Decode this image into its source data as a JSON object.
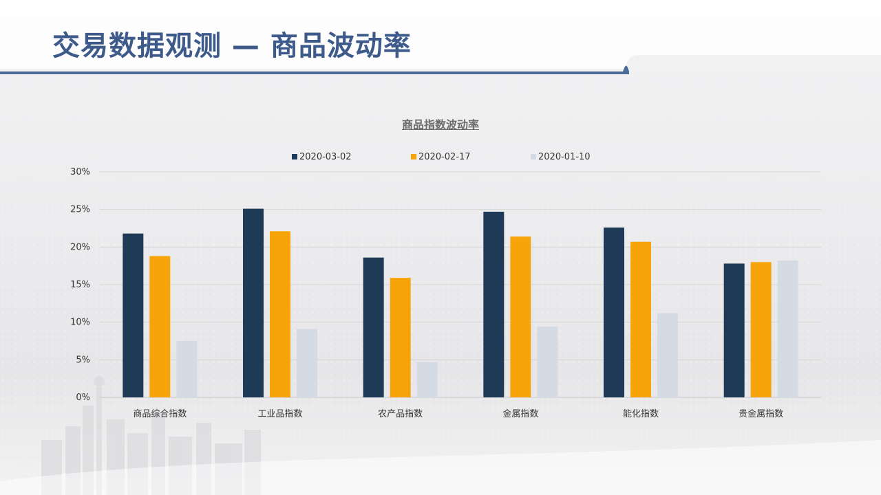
{
  "page": {
    "title": "交易数据观测 — 商品波动率"
  },
  "colors": {
    "title": "#3d5a8a",
    "header_bar": "#4c6a99",
    "grid": "#d6d6d6"
  },
  "chart_data": {
    "type": "bar",
    "title": "商品指数波动率",
    "categories": [
      "商品综合指数",
      "工业品指数",
      "农产品指数",
      "金属指数",
      "能化指数",
      "贵金属指数"
    ],
    "series": [
      {
        "name": "2020-03-02",
        "color": "#1f3a56",
        "values": [
          21.8,
          25.1,
          18.6,
          24.7,
          22.6,
          17.8
        ]
      },
      {
        "name": "2020-02-17",
        "color": "#f7a30a",
        "values": [
          18.8,
          22.1,
          15.9,
          21.4,
          20.7,
          18.0
        ]
      },
      {
        "name": "2020-01-10",
        "color": "#d5dbe4",
        "values": [
          7.5,
          9.1,
          4.7,
          9.4,
          11.2,
          18.2
        ]
      }
    ],
    "yticks": [
      "0%",
      "5%",
      "10%",
      "15%",
      "20%",
      "25%",
      "30%"
    ],
    "ylim": [
      0,
      30
    ],
    "grid": true,
    "legend_position": "top-center"
  }
}
